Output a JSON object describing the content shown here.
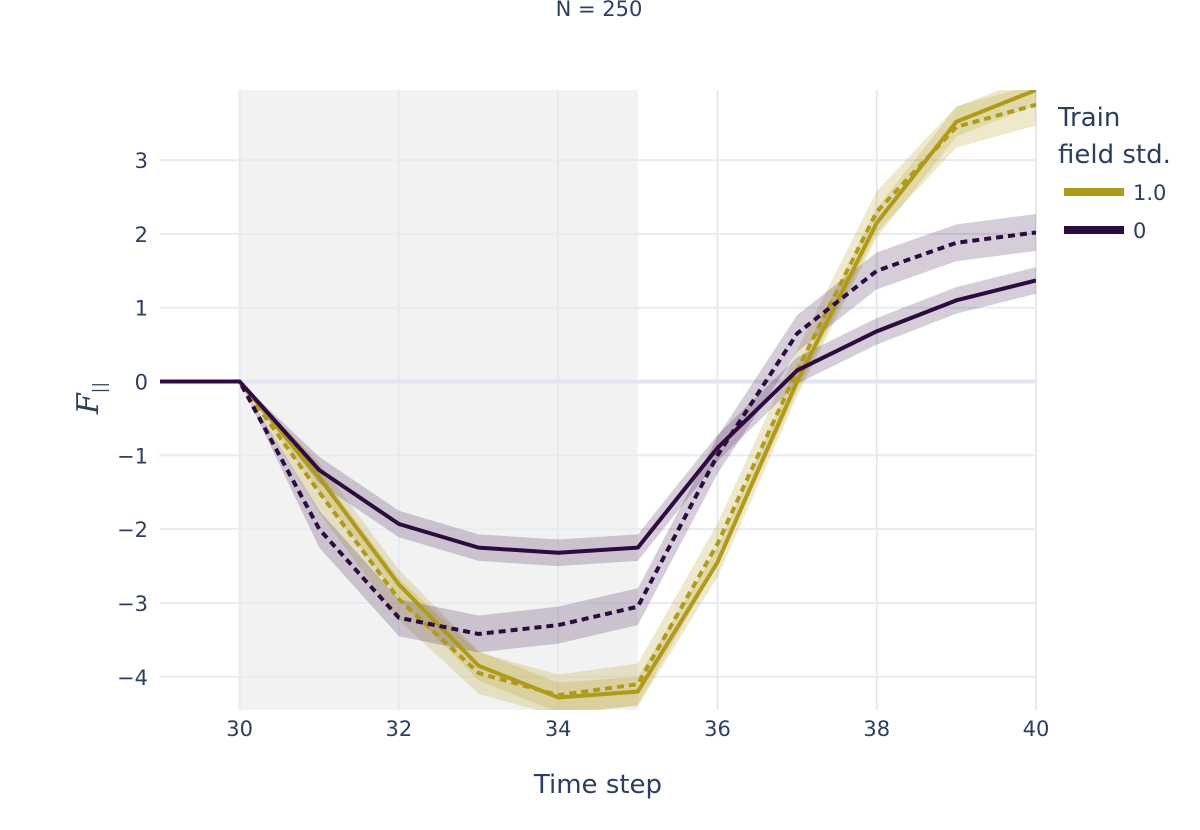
{
  "chart_data": {
    "type": "line",
    "title": "N = 250",
    "xlabel": "Time step",
    "ylabel": "F",
    "ylabel_sub": "||",
    "xlim": [
      29,
      40
    ],
    "ylim": [
      -4.45,
      3.95
    ],
    "xticks": [
      30,
      32,
      34,
      36,
      38,
      40
    ],
    "yticks": [
      3,
      2,
      1,
      0,
      -1,
      -2,
      -3,
      -4
    ],
    "ytick_labels": [
      "3",
      "2",
      "1",
      "0",
      "−1",
      "−2",
      "−3",
      "−4"
    ],
    "shaded_region": [
      30,
      35
    ],
    "grid": true,
    "legend": {
      "title_lines": [
        "Train",
        "field std."
      ],
      "placement": "right",
      "entries": [
        {
          "label": "1.0",
          "color": "#b09a1a"
        },
        {
          "label": "0",
          "color": "#2d0a40"
        }
      ]
    },
    "x": [
      29,
      30,
      31,
      32,
      33,
      34,
      35,
      36,
      37,
      38,
      39,
      40
    ],
    "series": [
      {
        "group": "1.0",
        "style": "solid",
        "color": "#b09a1a",
        "values": [
          0,
          0,
          -1.3,
          -2.75,
          -3.85,
          -4.28,
          -4.2,
          -2.45,
          0.0,
          2.15,
          3.52,
          3.95
        ],
        "band": 0.2
      },
      {
        "group": "1.0",
        "style": "dashed",
        "color": "#b09a1a",
        "values": [
          0,
          0,
          -1.5,
          -2.95,
          -3.95,
          -4.25,
          -4.1,
          -2.2,
          0.15,
          2.3,
          3.45,
          3.75
        ],
        "band": 0.28
      },
      {
        "group": "0",
        "style": "solid",
        "color": "#2d0a40",
        "values": [
          0,
          0,
          -1.2,
          -1.93,
          -2.25,
          -2.32,
          -2.25,
          -0.9,
          0.15,
          0.68,
          1.1,
          1.37
        ],
        "band": 0.18
      },
      {
        "group": "0",
        "style": "dashed",
        "color": "#2d0a40",
        "values": [
          0,
          0,
          -2.0,
          -3.2,
          -3.42,
          -3.3,
          -3.05,
          -1.0,
          0.65,
          1.5,
          1.88,
          2.02
        ],
        "band": 0.25
      }
    ]
  }
}
